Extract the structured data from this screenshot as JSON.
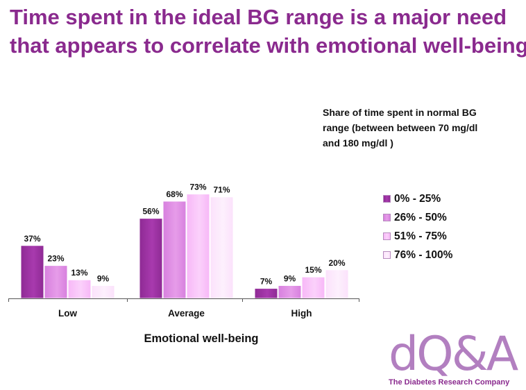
{
  "title": {
    "line1": "Time spent in the ideal BG range is a major need",
    "line2": "that appears to correlate with emotional well-being"
  },
  "colors": {
    "title": "#8a2a8e",
    "series": [
      "#8e2a94",
      "#d780de",
      "#f7b7f7",
      "#fbe1fb"
    ],
    "series_light": [
      "#a83aae",
      "#e69ce9",
      "#fbd1fb",
      "#fdf0fd"
    ]
  },
  "chart_data": {
    "type": "bar",
    "categories": [
      "Low",
      "Average",
      "High"
    ],
    "series": [
      {
        "name": "0% - 25%",
        "values": [
          37,
          56,
          7
        ]
      },
      {
        "name": "26% - 50%",
        "values": [
          23,
          68,
          9
        ]
      },
      {
        "name": "51% - 75%",
        "values": [
          13,
          73,
          15
        ]
      },
      {
        "name": "76% - 100%",
        "values": [
          9,
          71,
          20
        ]
      }
    ],
    "value_format": "%",
    "xlabel": "Emotional well-being",
    "legend_title": "Share of time spent in normal BG range (between between 70 mg/dl and 180 mg/dl )",
    "legend_position": "right",
    "ylim": [
      0,
      80
    ],
    "grid": false
  },
  "logo": {
    "mark": "dQ&A",
    "tagline": "The Diabetes Research Company"
  }
}
